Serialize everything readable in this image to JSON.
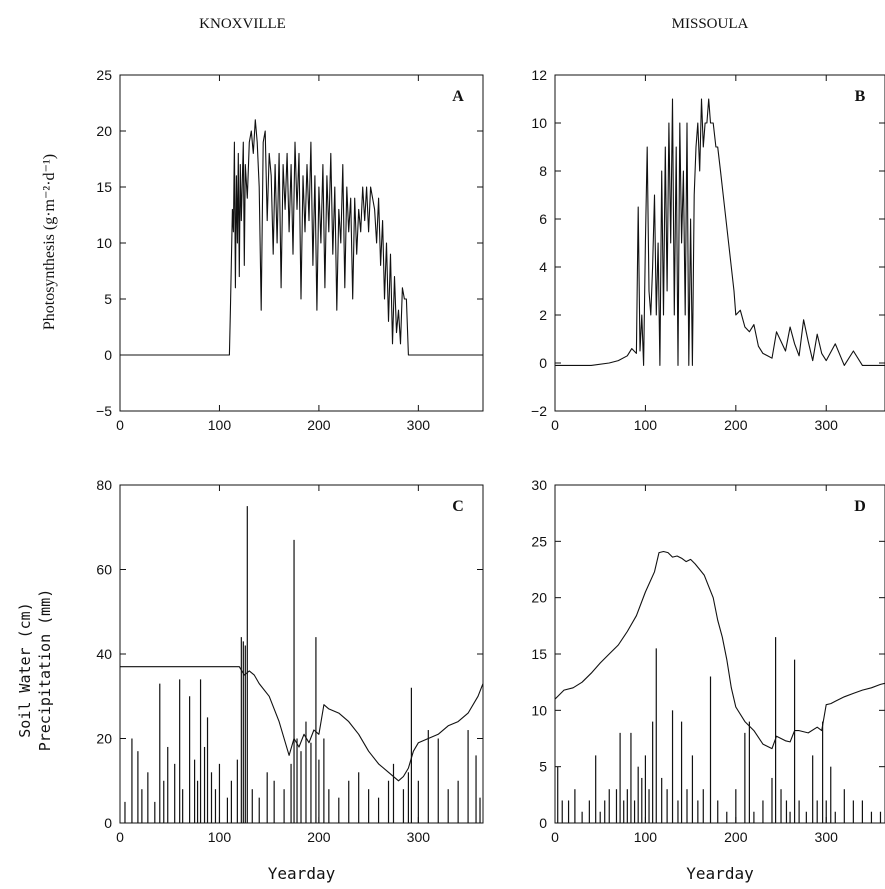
{
  "titles": {
    "left": "KNOXVILLE",
    "right": "MISSOULA"
  },
  "axis_labels": {
    "photosynthesis": "Photosynthesis   (g·m⁻²·d⁻¹)",
    "soil_water": "Soil Water (cm)",
    "precipitation": "Precipitation (mm)",
    "xlabel": "Yearday"
  },
  "chart_data": [
    {
      "type": "line",
      "panel": "A",
      "site": "KNOXVILLE",
      "xlim": [
        0,
        365
      ],
      "ylim": [
        -5,
        25
      ],
      "xticks": [
        0,
        100,
        200,
        300
      ],
      "yticks": [
        -5,
        0,
        5,
        10,
        15,
        20,
        25
      ],
      "xlabel": "",
      "ylabel": "Photosynthesis (g·m⁻²·d⁻¹)",
      "series": [
        {
          "x": [
            0,
            110,
            111,
            113,
            114,
            115,
            116,
            117,
            118,
            119,
            120,
            121,
            122,
            124,
            125,
            126,
            128,
            130,
            132,
            134,
            136,
            138,
            140,
            142,
            144,
            146,
            148,
            150,
            152,
            154,
            156,
            158,
            160,
            162,
            164,
            166,
            168,
            170,
            172,
            174,
            176,
            178,
            180,
            182,
            184,
            186,
            188,
            190,
            192,
            194,
            196,
            198,
            200,
            202,
            204,
            206,
            208,
            210,
            212,
            214,
            216,
            218,
            220,
            222,
            224,
            226,
            228,
            230,
            232,
            234,
            236,
            238,
            240,
            242,
            244,
            246,
            248,
            250,
            252,
            254,
            256,
            258,
            260,
            262,
            264,
            266,
            268,
            270,
            272,
            274,
            276,
            278,
            280,
            282,
            284,
            286,
            288,
            290,
            365
          ],
          "y": [
            0,
            0,
            4,
            13,
            11,
            19,
            6,
            16,
            10,
            18,
            7,
            17,
            12,
            19,
            8,
            17,
            14,
            19,
            20,
            18,
            21,
            19,
            15,
            4,
            19,
            20,
            12,
            18,
            16,
            9,
            17,
            10,
            18,
            6,
            17,
            13,
            18,
            11,
            17,
            9,
            19,
            13,
            18,
            5,
            16,
            11,
            17,
            12,
            19,
            8,
            16,
            4,
            15,
            10,
            17,
            6,
            16,
            11,
            18,
            9,
            15,
            4,
            13,
            10,
            17,
            6,
            15,
            11,
            14,
            5,
            14,
            9,
            13,
            11,
            15,
            12,
            15,
            11,
            15,
            14,
            13,
            10,
            14,
            8,
            12,
            5,
            10,
            3,
            9,
            1,
            7,
            2,
            4,
            1,
            6,
            5,
            5,
            0,
            0
          ]
        }
      ]
    },
    {
      "type": "line",
      "panel": "B",
      "site": "MISSOULA",
      "xlim": [
        0,
        365
      ],
      "ylim": [
        -2,
        12
      ],
      "xticks": [
        0,
        100,
        200,
        300
      ],
      "yticks": [
        -2,
        0,
        2,
        4,
        6,
        8,
        10,
        12
      ],
      "xlabel": "",
      "ylabel": "",
      "series": [
        {
          "x": [
            0,
            20,
            40,
            60,
            70,
            80,
            85,
            90,
            92,
            94,
            96,
            98,
            100,
            102,
            104,
            106,
            108,
            110,
            112,
            114,
            116,
            118,
            120,
            122,
            124,
            126,
            128,
            130,
            132,
            134,
            136,
            138,
            140,
            142,
            144,
            146,
            148,
            150,
            152,
            154,
            156,
            158,
            160,
            162,
            164,
            166,
            168,
            170,
            172,
            175,
            178,
            180,
            183,
            186,
            189,
            192,
            195,
            198,
            200,
            205,
            210,
            215,
            220,
            225,
            230,
            235,
            240,
            245,
            250,
            255,
            260,
            265,
            270,
            275,
            280,
            285,
            290,
            295,
            300,
            310,
            320,
            330,
            340,
            350,
            365
          ],
          "y": [
            -0.1,
            -0.1,
            -0.1,
            0,
            0.1,
            0.3,
            0.6,
            0.4,
            6.5,
            0.5,
            2,
            -0.1,
            5,
            9,
            3,
            2,
            4,
            7,
            2,
            5,
            -0.1,
            8,
            2,
            9,
            3,
            10,
            5,
            11,
            2,
            9,
            -0.1,
            10,
            5,
            8,
            2,
            10,
            -0.1,
            6,
            -0.1,
            7,
            9,
            10,
            8,
            11,
            9,
            10,
            10,
            11,
            10,
            10,
            9,
            9,
            8,
            7,
            6,
            5,
            4,
            3,
            2,
            2.2,
            1.5,
            1.3,
            1.6,
            0.7,
            0.4,
            0.3,
            0.2,
            1.3,
            0.9,
            0.5,
            1.5,
            0.8,
            0.3,
            1.8,
            0.9,
            0.1,
            1.2,
            0.4,
            0.1,
            0.8,
            -0.1,
            0.5,
            -0.1,
            -0.1,
            -0.1
          ]
        }
      ]
    },
    {
      "type": "line",
      "panel": "C",
      "site": "KNOXVILLE",
      "xlim": [
        0,
        365
      ],
      "ylim": [
        0,
        80
      ],
      "xticks": [
        0,
        100,
        200,
        300
      ],
      "yticks": [
        0,
        20,
        40,
        60,
        80
      ],
      "xlabel": "Yearday",
      "ylabel": "Soil Water (cm) / Precipitation (mm)",
      "series": [
        {
          "style": "line",
          "x": [
            0,
            110,
            120,
            125,
            130,
            135,
            140,
            150,
            160,
            170,
            175,
            180,
            185,
            190,
            195,
            200,
            205,
            210,
            220,
            230,
            240,
            250,
            260,
            270,
            280,
            285,
            290,
            295,
            300,
            310,
            320,
            330,
            340,
            350,
            360,
            365
          ],
          "y": [
            37,
            37,
            37,
            35,
            36,
            35,
            33,
            30,
            24,
            16,
            20,
            18,
            21,
            19,
            22,
            21,
            28,
            27,
            26,
            24,
            21,
            17,
            14,
            12,
            10,
            11,
            13,
            17,
            19,
            20,
            21,
            23,
            24,
            26,
            30,
            33
          ]
        },
        {
          "style": "bar",
          "x": [
            5,
            12,
            18,
            22,
            28,
            35,
            40,
            44,
            48,
            55,
            60,
            63,
            70,
            75,
            78,
            81,
            85,
            88,
            92,
            96,
            100,
            108,
            112,
            118,
            122,
            124,
            126,
            128,
            133,
            140,
            148,
            155,
            165,
            172,
            175,
            178,
            182,
            187,
            192,
            197,
            200,
            205,
            210,
            220,
            230,
            240,
            250,
            260,
            270,
            275,
            285,
            290,
            293,
            300,
            310,
            320,
            330,
            340,
            350,
            358,
            362
          ],
          "y": [
            5,
            20,
            17,
            8,
            12,
            5,
            33,
            10,
            18,
            14,
            34,
            8,
            30,
            15,
            10,
            34,
            18,
            25,
            12,
            8,
            14,
            6,
            10,
            15,
            44,
            43,
            42,
            75,
            8,
            6,
            12,
            10,
            8,
            14,
            67,
            20,
            17,
            24,
            19,
            44,
            15,
            20,
            8,
            6,
            10,
            12,
            8,
            6,
            10,
            14,
            8,
            12,
            32,
            10,
            22,
            20,
            8,
            10,
            22,
            16,
            6
          ]
        }
      ]
    },
    {
      "type": "line",
      "panel": "D",
      "site": "MISSOULA",
      "xlim": [
        0,
        365
      ],
      "ylim": [
        0,
        30
      ],
      "xticks": [
        0,
        100,
        200,
        300
      ],
      "yticks": [
        0,
        5,
        10,
        15,
        20,
        25,
        30
      ],
      "xlabel": "Yearday",
      "ylabel": "",
      "series": [
        {
          "style": "line",
          "x": [
            0,
            10,
            20,
            30,
            40,
            50,
            60,
            70,
            80,
            90,
            100,
            110,
            115,
            120,
            125,
            130,
            135,
            140,
            145,
            150,
            155,
            160,
            165,
            170,
            175,
            180,
            185,
            190,
            195,
            200,
            210,
            220,
            230,
            240,
            245,
            250,
            255,
            260,
            265,
            270,
            280,
            290,
            295,
            300,
            305,
            310,
            320,
            330,
            340,
            350,
            360,
            365
          ],
          "y": [
            11,
            11.8,
            12,
            12.5,
            13.3,
            14.2,
            15,
            15.8,
            17,
            18.4,
            20.5,
            22.3,
            24,
            24.1,
            24,
            23.6,
            23.7,
            23.5,
            23.2,
            23.4,
            23,
            22.5,
            22,
            21,
            20,
            18,
            16.5,
            14.5,
            12,
            10.3,
            9,
            8.2,
            7,
            6.6,
            7.7,
            7.5,
            7.3,
            7.2,
            8.2,
            8.2,
            8,
            8.5,
            8.2,
            10.5,
            10.6,
            10.8,
            11.2,
            11.5,
            11.8,
            12,
            12.3,
            12.4
          ]
        },
        {
          "style": "bar",
          "x": [
            3,
            8,
            15,
            22,
            30,
            38,
            45,
            50,
            55,
            60,
            68,
            72,
            76,
            80,
            84,
            88,
            92,
            96,
            100,
            104,
            108,
            112,
            118,
            124,
            130,
            136,
            140,
            146,
            152,
            158,
            164,
            172,
            180,
            190,
            200,
            210,
            215,
            220,
            230,
            240,
            244,
            250,
            256,
            260,
            265,
            270,
            278,
            285,
            290,
            296,
            300,
            305,
            310,
            320,
            330,
            340,
            350,
            360
          ],
          "y": [
            5,
            2,
            2,
            3,
            1,
            2,
            6,
            1,
            2,
            3,
            3,
            8,
            2,
            3,
            8,
            2,
            5,
            4,
            6,
            3,
            9,
            15.5,
            4,
            3,
            10,
            2,
            9,
            3,
            6,
            2,
            3,
            13,
            2,
            1,
            3,
            8,
            9,
            1,
            2,
            4,
            16.5,
            3,
            2,
            1,
            14.5,
            2,
            1,
            6,
            2,
            9,
            2,
            5,
            1,
            3,
            2,
            2,
            1,
            1
          ]
        }
      ]
    }
  ]
}
